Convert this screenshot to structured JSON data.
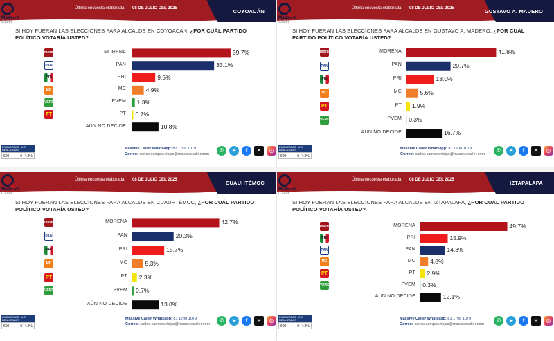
{
  "header": {
    "last_survey_label": "Última encuesta elaborada:",
    "date": "08 DE JULIO DEL 2025"
  },
  "logo": {
    "line1": "Massive",
    "line2": "Caller"
  },
  "footer": {
    "table_headers": [
      "ENCUESTAS REALIZADAS",
      "M.E."
    ],
    "table_values": [
      "600",
      "+/- 4.3%"
    ],
    "whatsapp_label": "Massive Caller Whatsapp:",
    "whatsapp_number": "81 1798 1079",
    "email_label": "Correo:",
    "email": "carlos.campos.riojas@massivecaller.com"
  },
  "colors": {
    "MORENA": "#b3131b",
    "PAN": "#1b2f6b",
    "PRI": "#f01c1c",
    "MC": "#ef7d2a",
    "PVEM": "#2c9e3e",
    "PT": "#f4e40a",
    "AÚN NO DECIDE": "#0a0a0a",
    "header_red": "#9e1c22",
    "header_navy": "#15193f"
  },
  "chart_data": [
    {
      "type": "bar",
      "place": "COYOACÁN",
      "question_plain": "SI HOY FUERAN LAS ELECCIONES PARA ALCALDE EN COYOACÁN, ",
      "question_bold": "¿POR CUÁL PARTIDO POLÍTICO VOTARÍA USTED?",
      "icons": [
        "MORENA",
        "PAN",
        "PRI",
        "MC",
        "PVEM",
        "PT"
      ],
      "categories": [
        "MORENA",
        "PAN",
        "PRI",
        "MC",
        "PVEM",
        "PT",
        "AÚN NO DECIDE"
      ],
      "values": [
        39.7,
        33.1,
        9.5,
        4.9,
        1.3,
        0.7,
        10.8
      ],
      "value_labels": [
        "39.7%",
        "33.1%",
        "9.5%",
        "4.9%",
        "1.3%",
        "0.7%",
        "10.8%"
      ],
      "xlim": [
        0,
        50
      ]
    },
    {
      "type": "bar",
      "place": "GUSTAVO A. MADERO",
      "question_plain": "SI HOY FUERAN LAS ELECCIONES PARA ALCALDE EN GUSTAVO A. MADERO, ",
      "question_bold": "¿POR CUÁL PARTIDO POLÍTICO VOTARÍA USTED?",
      "icons": [
        "MORENA",
        "PAN",
        "PRI",
        "MC",
        "PT",
        "PVEM"
      ],
      "categories": [
        "MORENA",
        "PAN",
        "PRI",
        "MC",
        "PT",
        "PVEM",
        "AÚN NO DECIDE"
      ],
      "values": [
        41.8,
        20.7,
        13.0,
        5.6,
        1.9,
        0.3,
        16.7
      ],
      "value_labels": [
        "41.8%",
        "20.7%",
        "13.0%",
        "5.6%",
        "1.9%",
        "0.3%",
        "16.7%"
      ],
      "xlim": [
        0,
        50
      ]
    },
    {
      "type": "bar",
      "place": "CUAUHTÉMOC",
      "question_plain": "SI HOY FUERAN LAS ELECCIONES PARA ALCALDE EN CUAUHTÉMOC, ",
      "question_bold": "¿POR CUÁL PARTIDO POLÍTICO VOTARÍA USTED?",
      "icons": [
        "MORENA",
        "PAN",
        "PRI",
        "MC",
        "PT",
        "PVEM"
      ],
      "categories": [
        "MORENA",
        "PAN",
        "PRI",
        "MC",
        "PT",
        "PVEM",
        "AÚN NO DECIDE"
      ],
      "values": [
        42.7,
        20.3,
        15.7,
        5.3,
        2.3,
        0.7,
        13.0
      ],
      "value_labels": [
        "42.7%",
        "20.3%",
        "15.7%",
        "5.3%",
        "2.3%",
        "0.7%",
        "13.0%"
      ],
      "xlim": [
        0,
        50
      ]
    },
    {
      "type": "bar",
      "place": "IZTAPALAPA",
      "question_plain": "SI HOY FUERAN LAS ELECCIONES PARA ALCALDE EN IZTAPALAPA, ",
      "question_bold": "¿POR CUÁL PARTIDO POLÍTICO VOTARÍA USTED?",
      "icons": [
        "MORENA",
        "PRI",
        "PAN",
        "MC",
        "PT",
        "PVEM"
      ],
      "categories": [
        "MORENA",
        "PRI",
        "PAN",
        "MC",
        "PT",
        "PVEM",
        "AÚN NO DECIDE"
      ],
      "values": [
        49.7,
        15.9,
        14.3,
        4.8,
        2.9,
        0.3,
        12.1
      ],
      "value_labels": [
        "49.7%",
        "15.9%",
        "14.3%",
        "4.8%",
        "2.9%",
        "0.3%",
        "12.1%"
      ],
      "xlim": [
        0,
        55
      ]
    }
  ]
}
